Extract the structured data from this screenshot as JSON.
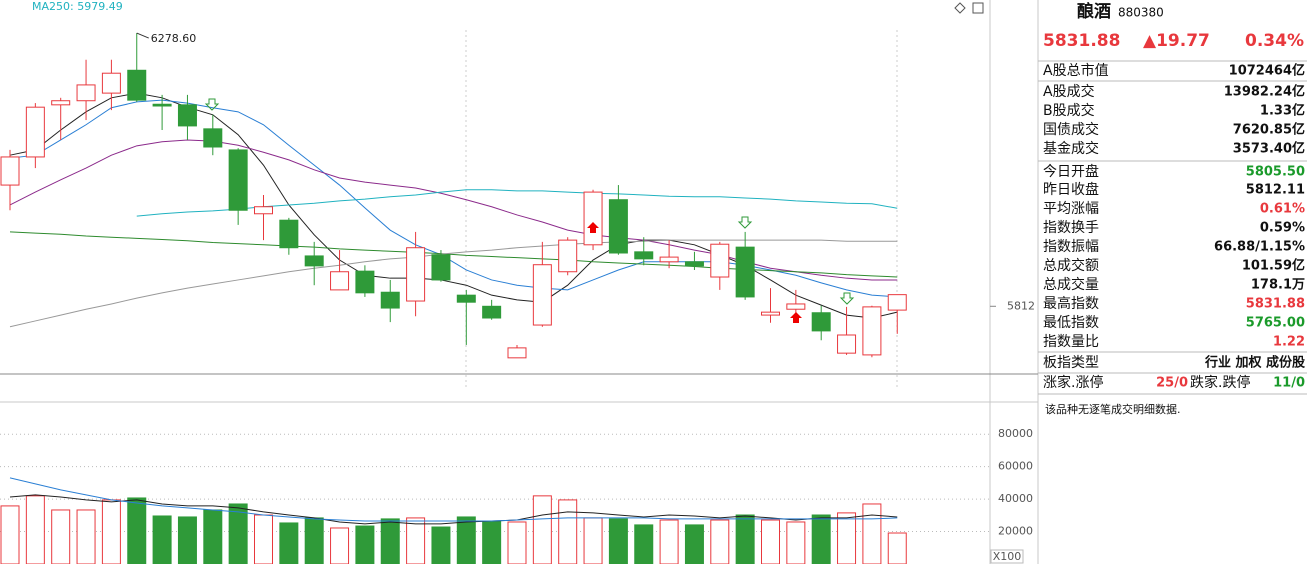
{
  "chart_data": [
    {
      "type": "candlestick",
      "open": [
        6019,
        6067,
        6156,
        6163,
        6176,
        6215,
        6157,
        6156,
        6115,
        6079,
        5970,
        5959,
        5898,
        5840,
        5872,
        5836,
        5821,
        5900,
        5831,
        5812,
        5724,
        5780,
        5871,
        5917,
        5994,
        5905,
        5888,
        5888,
        5862,
        5913,
        5797,
        5807,
        5801,
        5732,
        5729,
        5805.5
      ],
      "high": [
        6079,
        6159,
        6168,
        6233,
        6233,
        6278.6,
        6173,
        6173,
        6139,
        6082,
        6002,
        5963,
        5922,
        5908,
        5882,
        5857,
        5939,
        5908,
        5840,
        5823,
        5746,
        5922,
        5930,
        6011,
        6019,
        5930,
        5925,
        5905,
        5922,
        5939,
        5843,
        5840,
        5813,
        5811,
        5813,
        5831.88
      ],
      "low": [
        5976,
        6048,
        6096,
        6130,
        6147,
        6161,
        6113,
        6096,
        6070,
        5951,
        5925,
        5900,
        5848,
        5840,
        5828,
        5785,
        5795,
        5854,
        5746,
        5789,
        5724,
        5777,
        5865,
        5908,
        5900,
        5882,
        5877,
        5874,
        5840,
        5823,
        5784,
        5792,
        5754,
        5729,
        5725,
        5765
      ],
      "close": [
        6067,
        6152,
        6163,
        6190,
        6210,
        6164,
        6154,
        6120,
        6084,
        5976,
        5982,
        5912,
        5881,
        5871,
        5835,
        5809,
        5912,
        5857,
        5819,
        5792,
        5741,
        5883,
        5925,
        6007,
        5903,
        5893,
        5896,
        5881,
        5918,
        5828,
        5802,
        5816,
        5770,
        5763,
        5811,
        5831.88
      ],
      "up_color": "#e8383d",
      "down_color": "#2f9a39",
      "ylim": [
        5652,
        6335
      ],
      "yticks": [
        5812
      ],
      "annotation": "6278.60",
      "lines": [
        {
          "color": "#222222",
          "values": [
            6070,
            6079,
            6113,
            6144,
            6168,
            6176,
            6168,
            6152,
            6139,
            6105,
            6053,
            5985,
            5934,
            5891,
            5865,
            5860,
            5860,
            5857,
            5848,
            5831,
            5823,
            5819,
            5848,
            5891,
            5917,
            5925,
            5925,
            5917,
            5900,
            5882,
            5857,
            5831,
            5814,
            5797,
            5792,
            5802
          ]
        },
        {
          "color": "#2a7fd4",
          "values": [
            6065,
            6070,
            6096,
            6122,
            6151,
            6161,
            6164,
            6159,
            6151,
            6144,
            6122,
            6087,
            6053,
            6019,
            5980,
            5942,
            5917,
            5900,
            5874,
            5857,
            5848,
            5843,
            5840,
            5857,
            5874,
            5888,
            5888,
            5888,
            5888,
            5882,
            5874,
            5865,
            5852,
            5840,
            5831,
            5828
          ]
        },
        {
          "color": "#8b2a8b",
          "values": [
            5985,
            6007,
            6028,
            6048,
            6070,
            6086,
            6093,
            6096,
            6094,
            6087,
            6075,
            6062,
            6045,
            6031,
            6024,
            6019,
            6014,
            6005,
            5994,
            5982,
            5968,
            5956,
            5942,
            5934,
            5929,
            5925,
            5917,
            5908,
            5900,
            5888,
            5877,
            5871,
            5865,
            5860,
            5857,
            5857
          ]
        },
        {
          "color": "#2e8b2e",
          "values": [
            5939,
            5937,
            5935,
            5932,
            5930,
            5928,
            5926,
            5924,
            5921,
            5919,
            5917,
            5915,
            5913,
            5910,
            5908,
            5906,
            5904,
            5902,
            5899,
            5897,
            5895,
            5893,
            5891,
            5888,
            5886,
            5884,
            5882,
            5880,
            5877,
            5875,
            5873,
            5871,
            5869,
            5866,
            5864,
            5862
          ]
        },
        {
          "color": "#999999",
          "values": [
            5777,
            5787,
            5797,
            5807,
            5816,
            5826,
            5835,
            5843,
            5850,
            5857,
            5864,
            5871,
            5877,
            5882,
            5888,
            5893,
            5896,
            5901,
            5905,
            5908,
            5912,
            5915,
            5918,
            5920,
            5922,
            5923,
            5925,
            5925,
            5925,
            5925,
            5925,
            5925,
            5925,
            5923,
            5923,
            5923
          ]
        },
        {
          "name": "MA250:",
          "color": "#20b2c0",
          "values": [
            null,
            null,
            null,
            null,
            null,
            5966,
            5970,
            5973,
            5975,
            5978,
            5982,
            5985,
            5988,
            5992,
            5995,
            5999,
            6002,
            6007,
            6011,
            6011,
            6009,
            6009,
            6007,
            6005,
            6004,
            6002,
            6000,
            5999,
            5999,
            5997,
            5995,
            5992,
            5990,
            5988,
            5987,
            5979.49
          ]
        }
      ]
    },
    {
      "type": "bar",
      "values": [
        35800,
        42000,
        33300,
        33300,
        39500,
        40700,
        29600,
        29000,
        33300,
        37000,
        30200,
        25300,
        28400,
        22200,
        23400,
        27800,
        28400,
        22800,
        29000,
        26500,
        25900,
        42000,
        39500,
        28400,
        27800,
        24100,
        27100,
        24100,
        27100,
        30200,
        27100,
        25900,
        30200,
        31500,
        37000,
        19100
      ],
      "ylim": [
        0,
        98000
      ],
      "yticks": [
        20000,
        40000,
        60000,
        80000
      ],
      "unit_label": "X100",
      "lines": [
        {
          "color": "#222222",
          "values": [
            41300,
            42600,
            41300,
            39500,
            38300,
            39500,
            37000,
            35800,
            35800,
            34600,
            32100,
            30200,
            28400,
            25900,
            24700,
            25900,
            24700,
            24700,
            25900,
            26500,
            27100,
            30200,
            32100,
            31500,
            30200,
            29000,
            30200,
            29600,
            28400,
            29600,
            28400,
            27100,
            28400,
            28400,
            30200,
            29000
          ]
        },
        {
          "color": "#2a7fd4",
          "values": [
            53100,
            49400,
            45700,
            42600,
            39500,
            37600,
            35800,
            34600,
            33300,
            32100,
            30200,
            29000,
            27800,
            27100,
            26500,
            26500,
            26500,
            26500,
            26500,
            26500,
            27100,
            27800,
            28400,
            28400,
            28400,
            28400,
            27800,
            27800,
            27800,
            27800,
            27800,
            27800,
            27800,
            27800,
            27800,
            28400
          ]
        }
      ]
    }
  ],
  "panel": {
    "name": "酿酒",
    "code": "880380",
    "price": "5831.88",
    "change": "▲19.77",
    "pct": "0.34%",
    "rows": [
      {
        "label": "A股总市值",
        "value": "1072464亿"
      },
      {
        "label": "A股成交",
        "value": "13982.24亿"
      },
      {
        "label": "B股成交",
        "value": "1.33亿"
      },
      {
        "label": "国债成交",
        "value": "7620.85亿"
      },
      {
        "label": "基金成交",
        "value": "3573.40亿"
      },
      {
        "label": "今日开盘",
        "value": "5805.50",
        "color": "#1a9a2a"
      },
      {
        "label": "昨日收盘",
        "value": "5812.11"
      },
      {
        "label": "平均涨幅",
        "value": "0.61%",
        "color": "#e8383d"
      },
      {
        "label": "指数换手",
        "value": "0.59%"
      },
      {
        "label": "指数振幅",
        "value": "66.88/1.15%"
      },
      {
        "label": "总成交额",
        "value": "101.59亿"
      },
      {
        "label": "总成交量",
        "value": "178.1万"
      },
      {
        "label": "最高指数",
        "value": "5831.88",
        "color": "#e8383d"
      },
      {
        "label": "最低指数",
        "value": "5765.00",
        "color": "#1a9a2a"
      },
      {
        "label": "指数量比",
        "value": "1.22",
        "color": "#e8383d"
      },
      {
        "label": "板指类型",
        "value": "行业 加权 成份股"
      }
    ],
    "up_label": "涨家.涨停",
    "up_value": "25/0",
    "down_label": "跌家.跌停",
    "down_value": "11/0",
    "note": "该品种无逐笔成交明细数据."
  }
}
